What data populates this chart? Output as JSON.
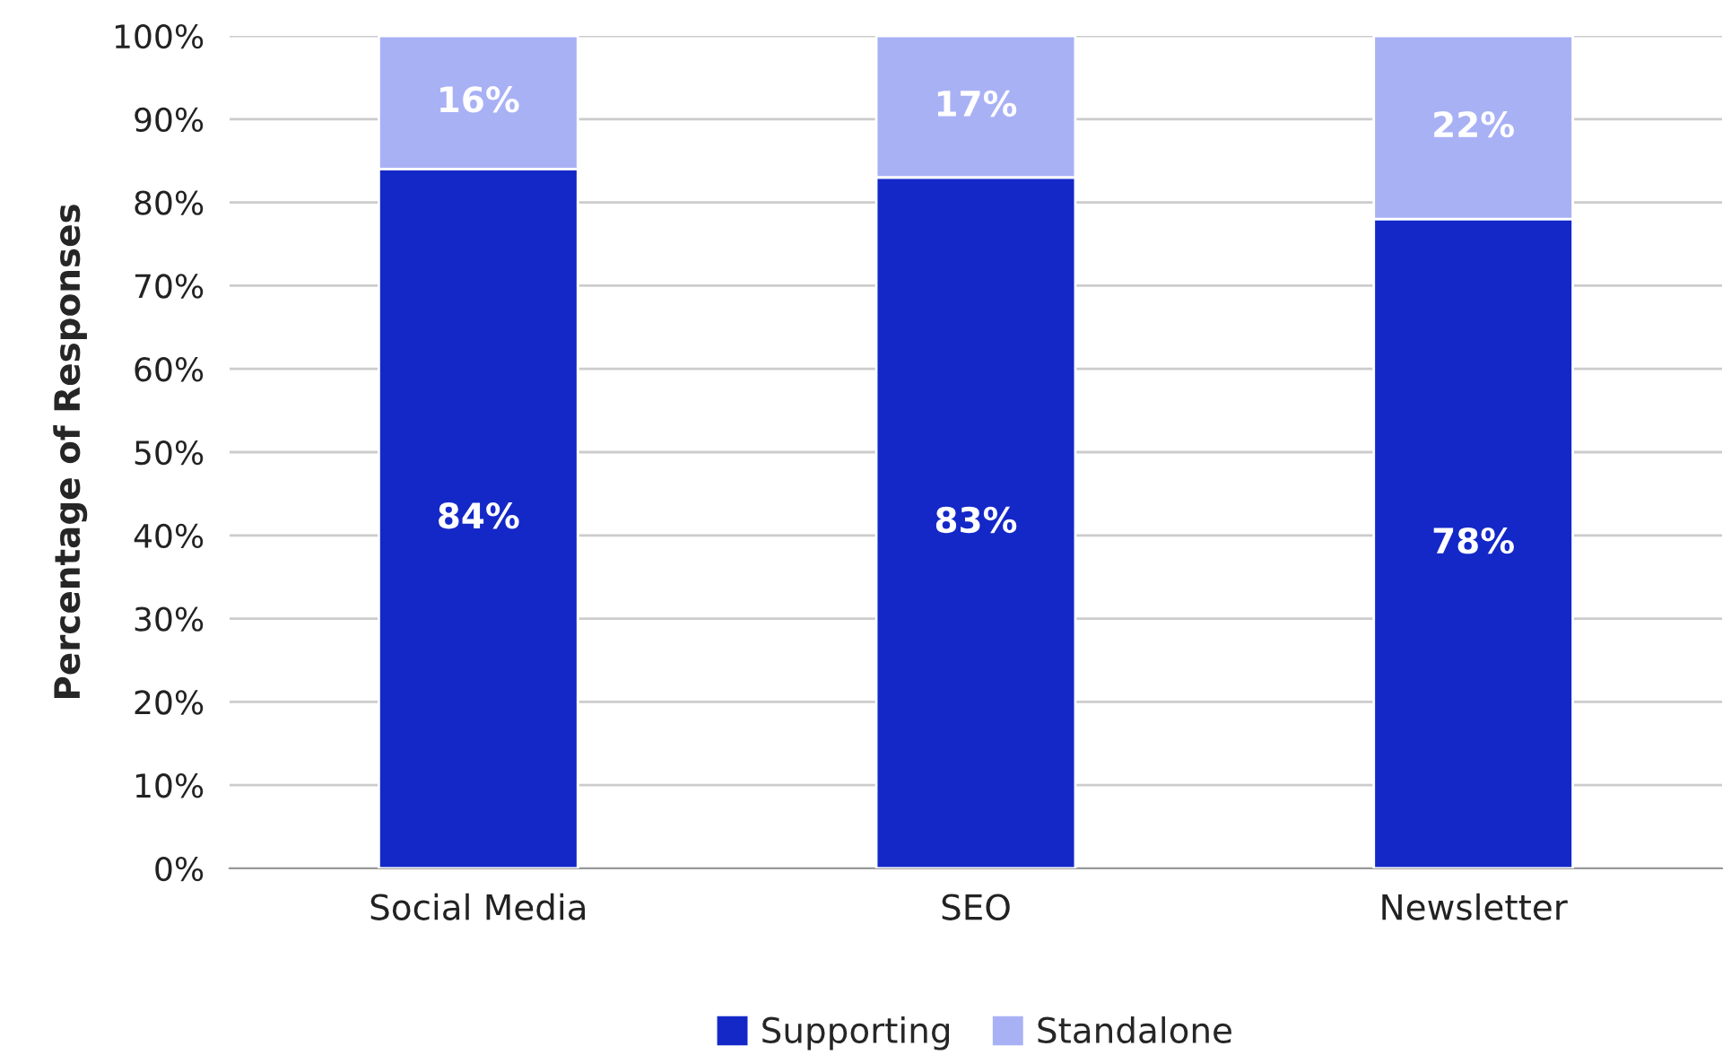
{
  "chart_data": {
    "type": "bar",
    "stacked": true,
    "ylabel": "Percentage of Responses",
    "categories": [
      "Social Media",
      "SEO",
      "Newsletter"
    ],
    "series": [
      {
        "name": "Supporting",
        "color": "#1428c8",
        "values": [
          84,
          83,
          78
        ],
        "value_labels": [
          "84%",
          "83%",
          "78%"
        ]
      },
      {
        "name": "Standalone",
        "color": "#a9b1f5",
        "values": [
          16,
          17,
          22
        ],
        "value_labels": [
          "16%",
          "17%",
          "22%"
        ]
      }
    ],
    "ylim": [
      0,
      100
    ],
    "yticks": [
      {
        "value": 0,
        "label": "0%"
      },
      {
        "value": 10,
        "label": "10%"
      },
      {
        "value": 20,
        "label": "20%"
      },
      {
        "value": 30,
        "label": "30%"
      },
      {
        "value": 40,
        "label": "40%"
      },
      {
        "value": 50,
        "label": "50%"
      },
      {
        "value": 60,
        "label": "60%"
      },
      {
        "value": 70,
        "label": "70%"
      },
      {
        "value": 80,
        "label": "80%"
      },
      {
        "value": 90,
        "label": "90%"
      },
      {
        "value": 100,
        "label": "100%"
      }
    ],
    "grid": "y",
    "legend": "bottom"
  }
}
